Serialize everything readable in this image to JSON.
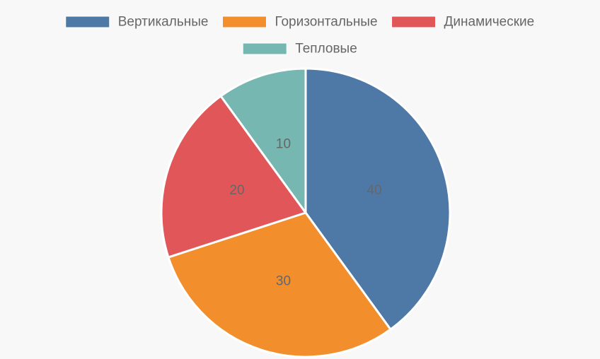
{
  "chart_data": {
    "type": "pie",
    "categories": [
      "Вертикальные",
      "Горизонтальные",
      "Динамические",
      "Тепловые"
    ],
    "values": [
      40,
      30,
      20,
      10
    ],
    "colors": [
      "#4e79a7",
      "#f28e2c",
      "#e15759",
      "#76b7b2"
    ],
    "show_value_labels": true,
    "legend_position": "top",
    "start_angle": "12 o'clock",
    "direction": "clockwise"
  }
}
